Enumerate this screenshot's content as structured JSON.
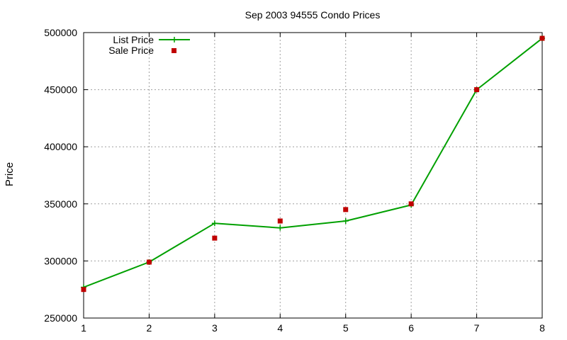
{
  "chart_data": {
    "type": "line",
    "title": "Sep 2003 94555 Condo Prices",
    "xlabel": "",
    "ylabel": "Price",
    "xlim": [
      1,
      8
    ],
    "ylim": [
      250000,
      500000
    ],
    "x_ticks": [
      "1",
      "2",
      "3",
      "4",
      "5",
      "6",
      "7",
      "8"
    ],
    "y_ticks": [
      "250000",
      "300000",
      "350000",
      "400000",
      "450000",
      "500000"
    ],
    "grid": true,
    "legend_position": "top-left",
    "series": [
      {
        "name": "List Price",
        "style": "line-with-plus-markers",
        "color": "#00a000",
        "x": [
          1,
          2,
          3,
          4,
          5,
          6,
          7,
          8
        ],
        "values": [
          277000,
          299000,
          333000,
          329000,
          335000,
          349000,
          450000,
          495000
        ]
      },
      {
        "name": "Sale Price",
        "style": "square-markers",
        "color": "#c00000",
        "x": [
          1,
          2,
          3,
          4,
          5,
          6,
          7,
          8
        ],
        "values": [
          275000,
          299000,
          320000,
          335000,
          345000,
          350000,
          450000,
          495000
        ]
      }
    ]
  }
}
